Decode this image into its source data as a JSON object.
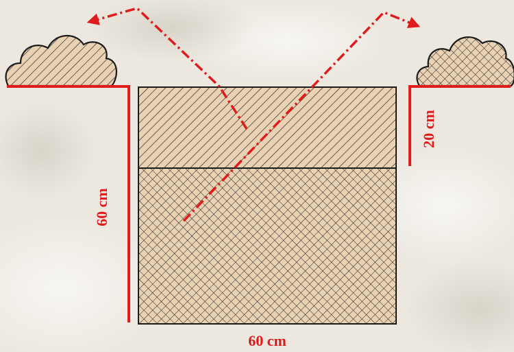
{
  "colors": {
    "background": "#ece8e0",
    "soil_fill": "#e9d2b3",
    "hatch": "#1d1d1d",
    "dimension": "#e01b1b",
    "outline": "#1a1a1a"
  },
  "dimensions": {
    "pit_depth_label": "60 cm",
    "pit_width_label": "60 cm",
    "topsoil_depth_label": "20 cm"
  },
  "icons": {
    "topsoil_pile": "diagonal-hatch-mound",
    "subsoil_pile": "crosshatch-mound",
    "topsoil_layer": "diagonal-hatch-layer",
    "subsoil_layer": "crosshatch-layer",
    "arrows": "dash-dot-red-arrow"
  }
}
